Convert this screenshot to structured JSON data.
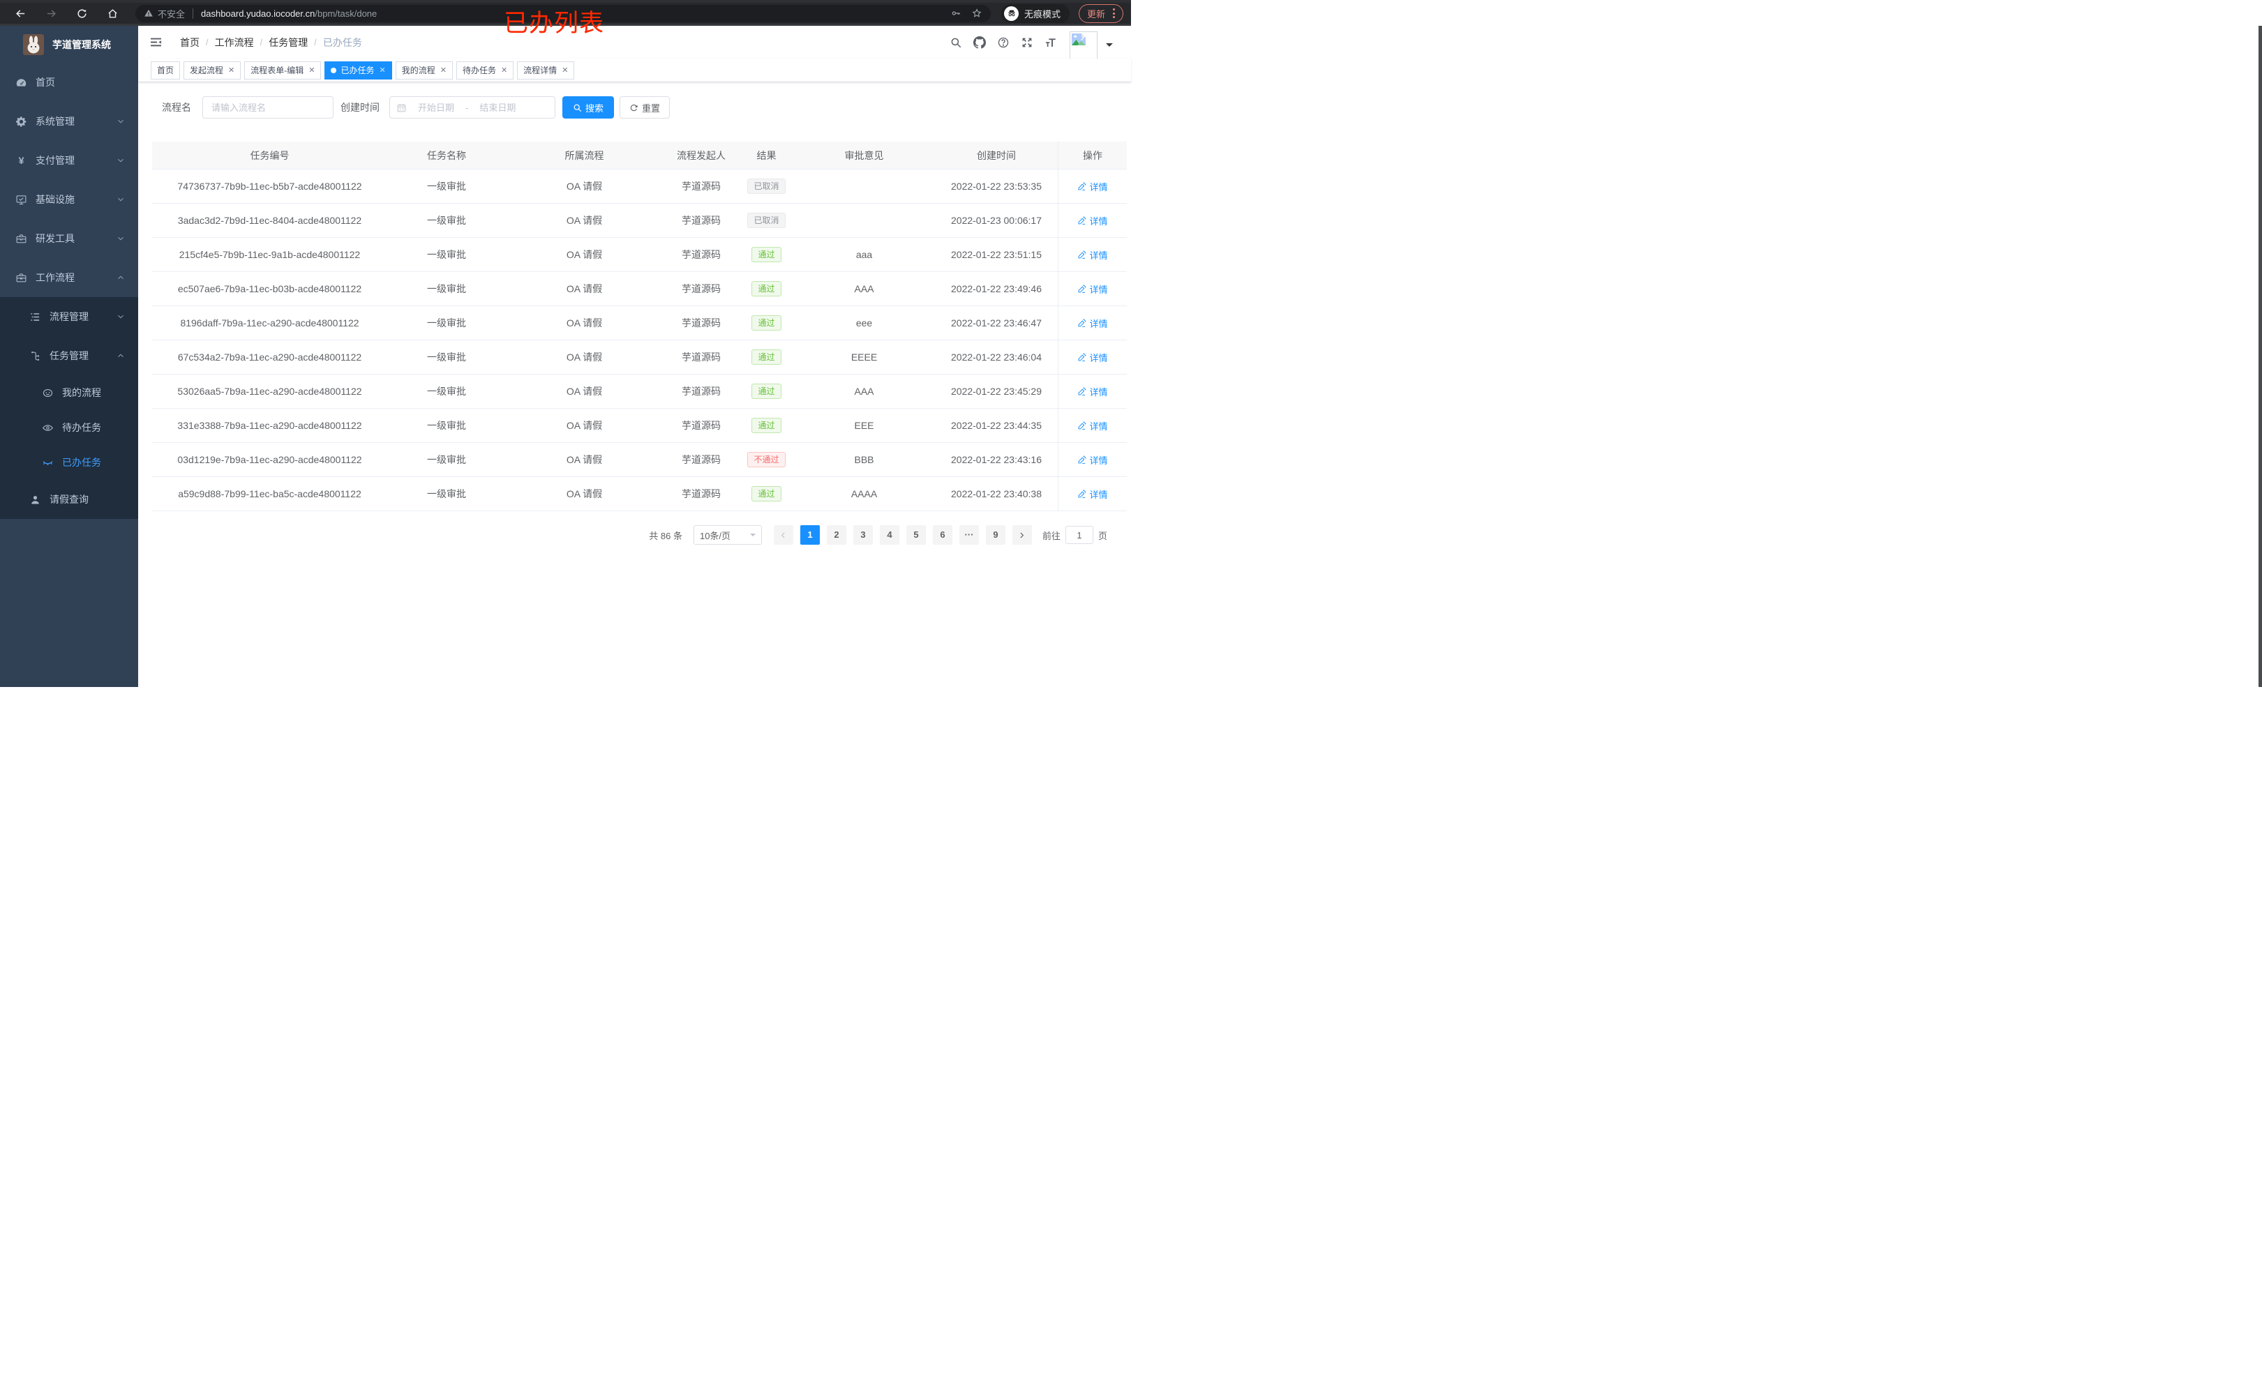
{
  "browser": {
    "security_label": "不安全",
    "url_host": "dashboard.yudao.iocoder.cn",
    "url_path": "/bpm/task/done",
    "incognito_label": "无痕模式",
    "update_label": "更新",
    "annotation": "已办列表"
  },
  "sidebar": {
    "logo_title": "芋道管理系统",
    "menu": [
      {
        "label": "首页",
        "icon": "dashboard-icon",
        "level": 1,
        "dark": false,
        "arrow": "",
        "active": false
      },
      {
        "label": "系统管理",
        "icon": "gear-icon",
        "level": 1,
        "dark": false,
        "arrow": "down",
        "active": false
      },
      {
        "label": "支付管理",
        "icon": "yen-icon",
        "level": 1,
        "dark": false,
        "arrow": "down",
        "active": false
      },
      {
        "label": "基础设施",
        "icon": "monitor-icon",
        "level": 1,
        "dark": false,
        "arrow": "down",
        "active": false
      },
      {
        "label": "研发工具",
        "icon": "toolbox-icon",
        "level": 1,
        "dark": false,
        "arrow": "down",
        "active": false
      },
      {
        "label": "工作流程",
        "icon": "briefcase-icon",
        "level": 1,
        "dark": false,
        "arrow": "up",
        "active": false
      },
      {
        "label": "流程管理",
        "icon": "list-tree-icon",
        "level": 2,
        "dark": true,
        "arrow": "down",
        "active": false
      },
      {
        "label": "任务管理",
        "icon": "org-tree-icon",
        "level": 2,
        "dark": true,
        "arrow": "up",
        "active": false
      },
      {
        "label": "我的流程",
        "icon": "robot-icon",
        "level": 3,
        "dark": true,
        "arrow": "",
        "active": false
      },
      {
        "label": "待办任务",
        "icon": "eye-icon",
        "level": 3,
        "dark": true,
        "arrow": "",
        "active": false
      },
      {
        "label": "已办任务",
        "icon": "eye-closed-icon",
        "level": 3,
        "dark": true,
        "arrow": "",
        "active": true
      },
      {
        "label": "请假查询",
        "icon": "person-icon",
        "level": 2,
        "dark": true,
        "arrow": "",
        "active": false
      }
    ]
  },
  "header": {
    "breadcrumb": [
      "首页",
      "工作流程",
      "任务管理",
      "已办任务"
    ]
  },
  "tabs": [
    {
      "label": "首页",
      "closable": false,
      "active": false
    },
    {
      "label": "发起流程",
      "closable": true,
      "active": false
    },
    {
      "label": "流程表单-编辑",
      "closable": true,
      "active": false
    },
    {
      "label": "已办任务",
      "closable": true,
      "active": true
    },
    {
      "label": "我的流程",
      "closable": true,
      "active": false
    },
    {
      "label": "待办任务",
      "closable": true,
      "active": false
    },
    {
      "label": "流程详情",
      "closable": true,
      "active": false
    }
  ],
  "filters": {
    "name_label": "流程名",
    "name_placeholder": "请输入流程名",
    "time_label": "创建时间",
    "start_placeholder": "开始日期",
    "range_separator": "-",
    "end_placeholder": "结束日期",
    "search_label": "搜索",
    "reset_label": "重置"
  },
  "table": {
    "columns": [
      "任务编号",
      "任务名称",
      "所属流程",
      "流程发起人",
      "结果",
      "审批意见",
      "创建时间",
      "操作"
    ],
    "detail_label": "详情",
    "result_labels": {
      "cancel": "已取消",
      "pass": "通过",
      "reject": "不通过"
    },
    "rows": [
      {
        "id": "74736737-7b9b-11ec-b5b7-acde48001122",
        "name": "一级审批",
        "process": "OA 请假",
        "starter": "芋道源码",
        "result": "cancel",
        "opinion": "",
        "time": "2022-01-22 23:53:35"
      },
      {
        "id": "3adac3d2-7b9d-11ec-8404-acde48001122",
        "name": "一级审批",
        "process": "OA 请假",
        "starter": "芋道源码",
        "result": "cancel",
        "opinion": "",
        "time": "2022-01-23 00:06:17"
      },
      {
        "id": "215cf4e5-7b9b-11ec-9a1b-acde48001122",
        "name": "一级审批",
        "process": "OA 请假",
        "starter": "芋道源码",
        "result": "pass",
        "opinion": "aaa",
        "time": "2022-01-22 23:51:15"
      },
      {
        "id": "ec507ae6-7b9a-11ec-b03b-acde48001122",
        "name": "一级审批",
        "process": "OA 请假",
        "starter": "芋道源码",
        "result": "pass",
        "opinion": "AAA",
        "time": "2022-01-22 23:49:46"
      },
      {
        "id": "8196daff-7b9a-11ec-a290-acde48001122",
        "name": "一级审批",
        "process": "OA 请假",
        "starter": "芋道源码",
        "result": "pass",
        "opinion": "eee",
        "time": "2022-01-22 23:46:47"
      },
      {
        "id": "67c534a2-7b9a-11ec-a290-acde48001122",
        "name": "一级审批",
        "process": "OA 请假",
        "starter": "芋道源码",
        "result": "pass",
        "opinion": "EEEE",
        "time": "2022-01-22 23:46:04"
      },
      {
        "id": "53026aa5-7b9a-11ec-a290-acde48001122",
        "name": "一级审批",
        "process": "OA 请假",
        "starter": "芋道源码",
        "result": "pass",
        "opinion": "AAA",
        "time": "2022-01-22 23:45:29"
      },
      {
        "id": "331e3388-7b9a-11ec-a290-acde48001122",
        "name": "一级审批",
        "process": "OA 请假",
        "starter": "芋道源码",
        "result": "pass",
        "opinion": "EEE",
        "time": "2022-01-22 23:44:35"
      },
      {
        "id": "03d1219e-7b9a-11ec-a290-acde48001122",
        "name": "一级审批",
        "process": "OA 请假",
        "starter": "芋道源码",
        "result": "reject",
        "opinion": "BBB",
        "time": "2022-01-22 23:43:16"
      },
      {
        "id": "a59c9d88-7b99-11ec-ba5c-acde48001122",
        "name": "一级审批",
        "process": "OA 请假",
        "starter": "芋道源码",
        "result": "pass",
        "opinion": "AAAA",
        "time": "2022-01-22 23:40:38"
      }
    ]
  },
  "pagination": {
    "total_text": "共 86 条",
    "page_size": "10条/页",
    "pages": [
      "1",
      "2",
      "3",
      "4",
      "5",
      "6",
      "···",
      "9"
    ],
    "active_page": "1",
    "goto_label": "前往",
    "goto_value": "1",
    "goto_suffix": "页"
  },
  "colors": {
    "primary": "#1890ff",
    "sidebar_active": "#409eff",
    "success": "#67c23a",
    "danger": "#f56c6c",
    "info": "#909399",
    "annotation_red": "#ff2800"
  }
}
